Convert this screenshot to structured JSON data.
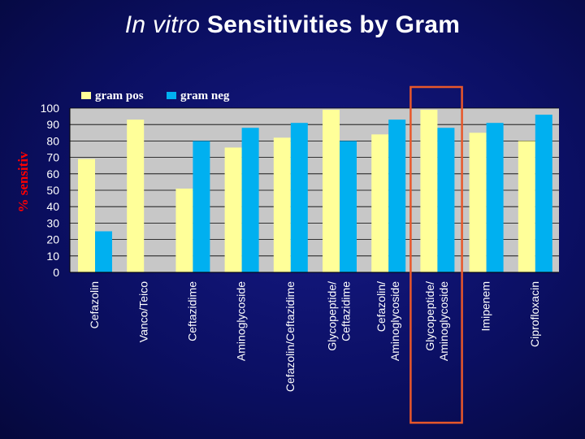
{
  "slide": {
    "title_italic": "In vitro",
    "title_rest": " Sensitivities by Gram"
  },
  "chart_data": {
    "type": "bar",
    "title": "",
    "ylabel": "% sensitiv",
    "xlabel": "",
    "ylim": [
      0,
      100
    ],
    "yticks": [
      0,
      10,
      20,
      30,
      40,
      50,
      60,
      70,
      80,
      90,
      100
    ],
    "grid": true,
    "legend": "top-left",
    "categories": [
      [
        "Cefazolin"
      ],
      [
        "Vanco/Teico"
      ],
      [
        "Ceftazidime"
      ],
      [
        "Aminoglycoside"
      ],
      [
        "Cefazolin/Ceftazidime"
      ],
      [
        "Glycopeptide/",
        "Ceftazidime"
      ],
      [
        "Cefazolin/",
        "Aminoglycoside"
      ],
      [
        "Glycopeptide/",
        "Aminoglycoside"
      ],
      [
        "Imipenem"
      ],
      [
        "Ciprofloxacin"
      ]
    ],
    "series": [
      {
        "name": "gram pos",
        "color": "#ffff99",
        "values": [
          69,
          93,
          51,
          76,
          82,
          99,
          84,
          99,
          85,
          80
        ]
      },
      {
        "name": "gram neg",
        "color": "#00b0f0",
        "values": [
          25,
          null,
          80,
          88,
          91,
          80,
          93,
          88,
          91,
          96
        ]
      }
    ],
    "highlight": {
      "category_index": 7,
      "color": "#e8572a"
    }
  }
}
